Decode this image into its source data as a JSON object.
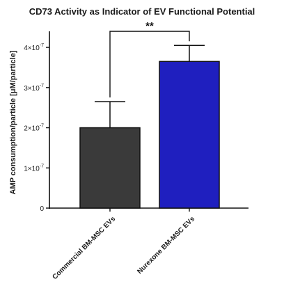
{
  "chart_data": {
    "type": "bar",
    "title": "CD73 Activity as Indicator of EV Functional Potential",
    "xlabel": "",
    "ylabel": "AMP consumption/particle [μM/particle]",
    "categories": [
      "Commercial BM-MSC EVs",
      "Nurexone BM-MSC EVs"
    ],
    "values": [
      2e-07,
      3.65e-07
    ],
    "error_upper": [
      2.65e-07,
      4.05e-07
    ],
    "ylim": [
      0,
      4.4e-07
    ],
    "y_ticks": [
      {
        "value": 0,
        "label": "0"
      },
      {
        "value": 1e-07,
        "label": "1×10",
        "exp": "-7"
      },
      {
        "value": 2e-07,
        "label": "2×10",
        "exp": "-7"
      },
      {
        "value": 3e-07,
        "label": "3×10",
        "exp": "-7"
      },
      {
        "value": 4e-07,
        "label": "4×10",
        "exp": "-7"
      }
    ],
    "bar_colors": [
      "#3a3a3a",
      "#1f1fbf"
    ],
    "significance": "**",
    "grid": false
  }
}
